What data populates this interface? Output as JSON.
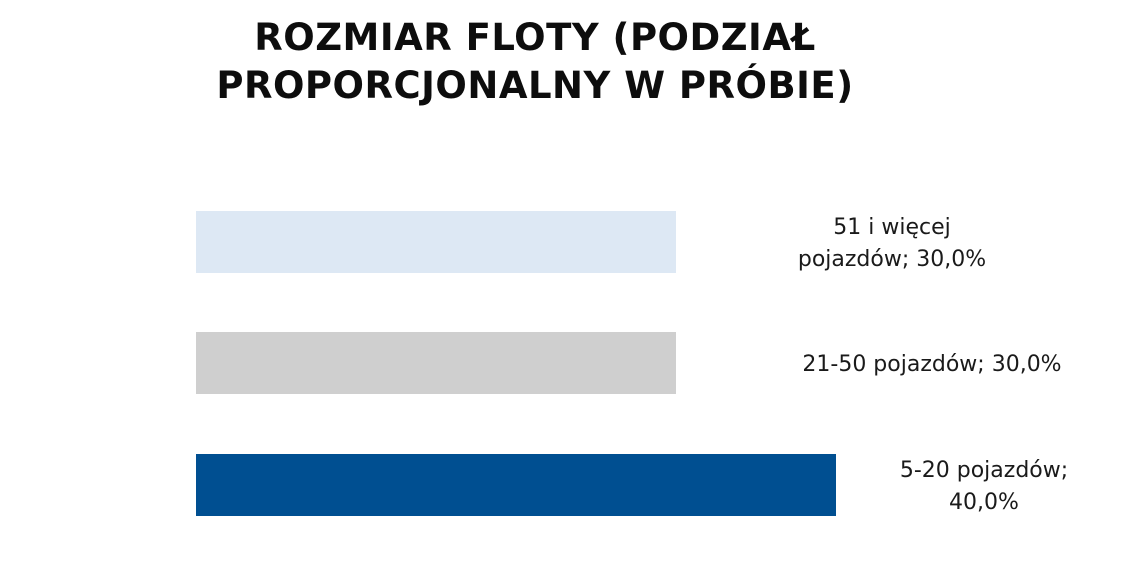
{
  "chart_data": {
    "type": "bar",
    "orientation": "horizontal",
    "title": "ROZMIAR FLOTY (PODZIAŁ PROPORCJONALNY W PRÓBIE)",
    "title_lines": [
      "ROZMIAR FLOTY (PODZIAŁ",
      "PROPORCJONALNY W PRÓBIE)"
    ],
    "categories": [
      "51 i więcej pojazdów",
      "21-50 pojazdów",
      "5-20 pojazdów"
    ],
    "values": [
      30.0,
      30.0,
      40.0
    ],
    "value_unit": "%",
    "data_labels": [
      [
        "51 i więcej",
        "pojazdów; 30,0%"
      ],
      [
        "21-50 pojazdów; 30,0%"
      ],
      [
        "5-20 pojazdów;",
        "40,0%"
      ]
    ],
    "colors": [
      "#dde8f4",
      "#cfcfcf",
      "#004f91"
    ],
    "xlim": [
      0,
      40
    ],
    "grid": false,
    "legend": "none",
    "xlabel": "",
    "ylabel": ""
  }
}
